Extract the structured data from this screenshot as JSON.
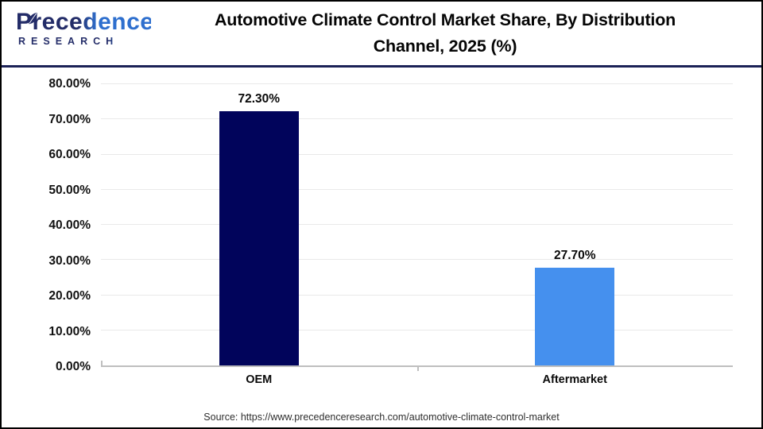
{
  "brand": {
    "name": "Precedence",
    "subname": "RESEARCH",
    "navy": "#232C68",
    "blue": "#2E6FCE"
  },
  "header": {
    "title_line1": "Automotive Climate Control Market Share, By Distribution",
    "title_line2": "Channel, 2025 (%)"
  },
  "chart_data": {
    "type": "bar",
    "title": "Automotive Climate Control Market Share, By Distribution Channel, 2025 (%)",
    "categories": [
      "OEM",
      "Aftermarket"
    ],
    "values": [
      72.3,
      27.7
    ],
    "value_labels": [
      "72.30%",
      "27.70%"
    ],
    "bar_colors": [
      "#01045B",
      "#4590EE"
    ],
    "xlabel": "",
    "ylabel": "",
    "ylim": [
      0,
      80
    ],
    "ytick_step": 10,
    "ytick_labels": [
      "0.00%",
      "10.00%",
      "20.00%",
      "30.00%",
      "40.00%",
      "50.00%",
      "60.00%",
      "70.00%",
      "80.00%"
    ],
    "grid": true,
    "gridline_color": "#E9E9E9",
    "axis_color": "#BFBFBF",
    "legend": "none"
  },
  "footer": {
    "source": "Source: https://www.precedenceresearch.com/automotive-climate-control-market"
  }
}
